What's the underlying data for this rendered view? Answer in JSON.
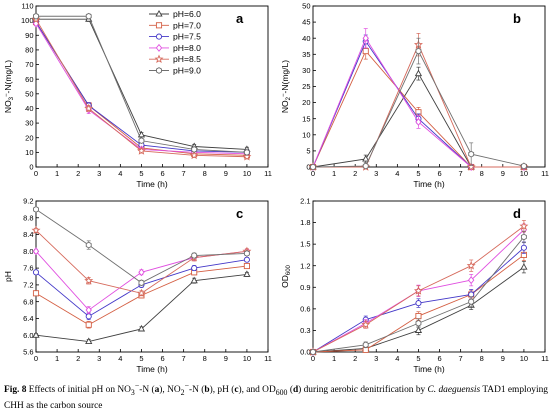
{
  "caption": {
    "fig_no": "Fig. 8",
    "p1": "  Effects of initial pH on NO",
    "p2": "-N (",
    "a": "a",
    "p3": "), NO",
    "p4": "-N (",
    "b": "b",
    "p5": "), pH (",
    "c": "c",
    "p6": "), and OD",
    "od_sub": "600",
    "p7": " (",
    "d": "d",
    "p8": ") during aerobic denitrification by ",
    "species": "C. daeguensis",
    "p9": " TAD1 employing CHH as the carbon source",
    "sub3": "3",
    "sub2": "2",
    "sup_minus": "−"
  },
  "legend": {
    "entries": [
      "pH=6.0",
      "pH=7.0",
      "pH=7.5",
      "pH=8.0",
      "pH=8.5",
      "pH=9.0"
    ],
    "placement": "top-right of panel a"
  },
  "chart_data": [
    {
      "id": "a",
      "type": "line",
      "label": "a",
      "xlabel": "Time (h)",
      "ylabel": {
        "pre": "NO",
        "sub": "3",
        "sup": "−",
        "post": "-N(mg/L)"
      },
      "xlim": [
        0,
        11
      ],
      "ylim": [
        0,
        110
      ],
      "xticks": [
        0,
        1,
        2,
        3,
        4,
        5,
        6,
        7,
        8,
        9,
        10,
        11
      ],
      "yticks": [
        0,
        10,
        20,
        30,
        40,
        50,
        60,
        70,
        80,
        90,
        100,
        110
      ],
      "x": [
        0,
        2.5,
        5,
        7.5,
        10
      ],
      "series": [
        {
          "name": "pH=6.0",
          "color": "#404040",
          "marker": "triangle",
          "values": [
            101,
            101,
            22,
            14,
            12
          ],
          "err": [
            1.5,
            1.5,
            1.5,
            1.5,
            1.5
          ]
        },
        {
          "name": "pH=7.0",
          "color": "#d45f43",
          "marker": "square",
          "values": [
            99,
            42,
            13,
            9,
            8
          ],
          "err": [
            1.5,
            2,
            1.5,
            1.5,
            1.5
          ]
        },
        {
          "name": "pH=7.5",
          "color": "#4438c8",
          "marker": "circle",
          "values": [
            99,
            42,
            15,
            11,
            10
          ],
          "err": [
            1.5,
            2,
            1.5,
            1.5,
            1.5
          ]
        },
        {
          "name": "pH=8.0",
          "color": "#e04fe0",
          "marker": "diamond",
          "values": [
            98,
            39,
            12,
            10,
            9
          ],
          "err": [
            1.5,
            2.5,
            1.5,
            2,
            1.5
          ]
        },
        {
          "name": "pH=8.5",
          "color": "#d66a5c",
          "marker": "star",
          "values": [
            101,
            40,
            11,
            8,
            7
          ],
          "err": [
            1.5,
            2,
            1.5,
            1.5,
            1.5
          ]
        },
        {
          "name": "pH=9.0",
          "color": "#707070",
          "marker": "hexagon",
          "values": [
            103,
            103,
            18,
            12,
            10
          ],
          "err": [
            1.5,
            1.5,
            1.5,
            1.5,
            1.5
          ]
        }
      ]
    },
    {
      "id": "b",
      "type": "line",
      "label": "b",
      "xlabel": "Time (h)",
      "ylabel": {
        "pre": "NO",
        "sub": "2",
        "sup": "−",
        "post": "-N(mg/L)"
      },
      "xlim": [
        0,
        11
      ],
      "ylim": [
        0,
        50
      ],
      "xticks": [
        0,
        1,
        2,
        3,
        4,
        5,
        6,
        7,
        8,
        9,
        10,
        11
      ],
      "yticks": [
        0,
        5,
        10,
        15,
        20,
        25,
        30,
        35,
        40,
        45,
        50
      ],
      "x": [
        0,
        2.5,
        5,
        7.5,
        10
      ],
      "series": [
        {
          "name": "pH=6.0",
          "color": "#404040",
          "marker": "triangle",
          "values": [
            0,
            2.5,
            29,
            0,
            0
          ],
          "err": [
            0.3,
            1.2,
            2,
            0.3,
            0.3
          ]
        },
        {
          "name": "pH=7.0",
          "color": "#d45f43",
          "marker": "square",
          "values": [
            0,
            36,
            17,
            0,
            0
          ],
          "err": [
            0.3,
            2.5,
            1.5,
            0.3,
            0.3
          ]
        },
        {
          "name": "pH=7.5",
          "color": "#4438c8",
          "marker": "circle",
          "values": [
            0,
            39,
            15,
            0,
            0
          ],
          "err": [
            0.3,
            2,
            1.5,
            0.3,
            0.3
          ]
        },
        {
          "name": "pH=8.0",
          "color": "#e04fe0",
          "marker": "diamond",
          "values": [
            0,
            40,
            14,
            0,
            0
          ],
          "err": [
            0.3,
            3,
            2,
            0.3,
            0.3
          ]
        },
        {
          "name": "pH=8.5",
          "color": "#d66a5c",
          "marker": "star",
          "values": [
            0,
            0,
            38,
            0,
            0
          ],
          "err": [
            0.3,
            0.3,
            3.5,
            0.3,
            0.3
          ]
        },
        {
          "name": "pH=9.0",
          "color": "#707070",
          "marker": "hexagon",
          "values": [
            0,
            0.3,
            36,
            4,
            0.3
          ],
          "err": [
            0.3,
            0.3,
            4,
            3.5,
            0.3
          ]
        }
      ]
    },
    {
      "id": "c",
      "type": "line",
      "label": "c",
      "xlabel": "Time (h)",
      "ylabel": {
        "pre": "pH",
        "sub": "",
        "sup": "",
        "post": ""
      },
      "xlim": [
        0,
        11
      ],
      "ylim": [
        5.6,
        9.2
      ],
      "xticks": [
        0,
        1,
        2,
        3,
        4,
        5,
        6,
        7,
        8,
        9,
        10,
        11
      ],
      "yticks": [
        5.6,
        6.0,
        6.4,
        6.8,
        7.2,
        7.6,
        8.0,
        8.4,
        8.8,
        9.2
      ],
      "yticklabels": [
        "5.6",
        "6.0",
        "6.4",
        "6.8",
        "7.2",
        "7.6",
        "8.0",
        "8.4",
        "8.8",
        "9.2"
      ],
      "x": [
        0,
        2.5,
        5,
        7.5,
        10
      ],
      "series": [
        {
          "name": "pH=6.0",
          "color": "#404040",
          "marker": "triangle",
          "values": [
            6.0,
            5.85,
            6.15,
            7.3,
            7.45
          ],
          "err": [
            0.04,
            0.05,
            0.05,
            0.06,
            0.05
          ]
        },
        {
          "name": "pH=7.0",
          "color": "#d45f43",
          "marker": "square",
          "values": [
            7.0,
            6.25,
            6.95,
            7.5,
            7.65
          ],
          "err": [
            0.05,
            0.08,
            0.06,
            0.06,
            0.05
          ]
        },
        {
          "name": "pH=7.5",
          "color": "#4438c8",
          "marker": "circle",
          "values": [
            7.5,
            6.45,
            7.2,
            7.6,
            7.8
          ],
          "err": [
            0.05,
            0.08,
            0.06,
            0.06,
            0.05
          ]
        },
        {
          "name": "pH=8.0",
          "color": "#e04fe0",
          "marker": "diamond",
          "values": [
            8.0,
            6.6,
            7.5,
            7.85,
            8.0
          ],
          "err": [
            0.05,
            0.08,
            0.06,
            0.06,
            0.05
          ]
        },
        {
          "name": "pH=8.5",
          "color": "#d66a5c",
          "marker": "star",
          "values": [
            8.5,
            7.3,
            7.0,
            7.85,
            8.0
          ],
          "err": [
            0.05,
            0.08,
            0.06,
            0.08,
            0.06
          ]
        },
        {
          "name": "pH=9.0",
          "color": "#707070",
          "marker": "hexagon",
          "values": [
            9.0,
            8.15,
            7.25,
            7.9,
            7.95
          ],
          "err": [
            0.05,
            0.1,
            0.06,
            0.06,
            0.05
          ]
        }
      ]
    },
    {
      "id": "d",
      "type": "line",
      "label": "d",
      "xlabel": "Time (h)",
      "ylabel": {
        "pre": "OD",
        "sub": "600",
        "sup": "",
        "post": ""
      },
      "xlim": [
        0,
        11
      ],
      "ylim": [
        0,
        2.1
      ],
      "xticks": [
        0,
        1,
        2,
        3,
        4,
        5,
        6,
        7,
        8,
        9,
        10,
        11
      ],
      "yticks": [
        0,
        0.3,
        0.6,
        0.9,
        1.2,
        1.5,
        1.8,
        2.1
      ],
      "yticklabels": [
        "0.0",
        "0.3",
        "0.6",
        "0.9",
        "1.2",
        "1.5",
        "1.8",
        "2.1"
      ],
      "x": [
        0,
        2.5,
        5,
        7.5,
        10
      ],
      "series": [
        {
          "name": "pH=6.0",
          "color": "#404040",
          "marker": "triangle",
          "values": [
            0.0,
            0.05,
            0.3,
            0.65,
            1.18
          ],
          "err": [
            0.01,
            0.03,
            0.06,
            0.06,
            0.08
          ]
        },
        {
          "name": "pH=7.0",
          "color": "#d45f43",
          "marker": "square",
          "values": [
            0.0,
            0.03,
            0.5,
            0.8,
            1.35
          ],
          "err": [
            0.01,
            0.03,
            0.06,
            0.06,
            0.08
          ]
        },
        {
          "name": "pH=7.5",
          "color": "#4438c8",
          "marker": "circle",
          "values": [
            0.0,
            0.45,
            0.68,
            0.8,
            1.45
          ],
          "err": [
            0.01,
            0.05,
            0.06,
            0.07,
            0.08
          ]
        },
        {
          "name": "pH=8.0",
          "color": "#e04fe0",
          "marker": "diamond",
          "values": [
            0.0,
            0.4,
            0.85,
            1.0,
            1.7
          ],
          "err": [
            0.01,
            0.05,
            0.08,
            0.08,
            0.08
          ]
        },
        {
          "name": "pH=8.5",
          "color": "#d66a5c",
          "marker": "star",
          "values": [
            0.0,
            0.38,
            0.85,
            1.2,
            1.75
          ],
          "err": [
            0.01,
            0.05,
            0.07,
            0.08,
            0.08
          ]
        },
        {
          "name": "pH=9.0",
          "color": "#707070",
          "marker": "hexagon",
          "values": [
            0.0,
            0.1,
            0.4,
            0.7,
            1.6
          ],
          "err": [
            0.01,
            0.04,
            0.06,
            0.07,
            0.08
          ]
        }
      ]
    }
  ]
}
